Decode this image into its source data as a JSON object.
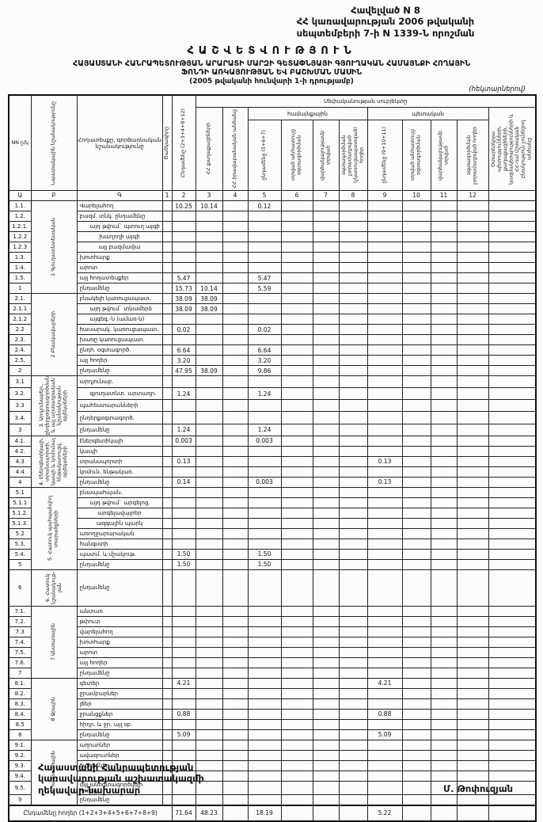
{
  "page": {
    "appendix_line1": "Հավելված N 8",
    "appendix_line2": "ՀՀ կառավարության 2006 թվականի",
    "appendix_line3": "սեպտեմբերի 7-ի  N 1339-Ն որոշման",
    "title": "ՀԱՇՎԵՏՎՈՒԹՅՈՒՆ",
    "subtitle1": "ՀԱՅԱՍՏԱՆԻ ՀԱՆՐԱՊԵՏՈՒԹՅԱՆ ԱՐԱՐԱՏԻ ՄԱՐԶԻ ԳԵՏԱՓՆՅԱՅԻ ԳՅՈՒՂԱԿԱՆ ՀԱՄԱՅՆՔԻ ՀՈՂԱՅԻՆ",
    "subtitle2": "ՖՈՆԴԻ ԱՌԿԱՅՈՒԹՅԱՆ ԵՎ ԲԱՇԽՄԱՆ ՄԱՍԻՆ",
    "subtitle3": "(2005 թվականի հունվարի 1-ի դրությամբ)",
    "units_note": "(հեկտարներով)"
  },
  "table": {
    "headers": {
      "num": "NN ը/կ",
      "section": "Նպատակային նշանակությունը",
      "land_type": "Հողատեսքը, գործառնական նշանակությունը",
      "code": "Ծածկագիրը",
      "col1": "Ընդամենը (2+3+4+8+12)",
      "ownership_banner": "Սեփականության սուբյեկտը",
      "col2": "ՀՀ քաղաքացիների",
      "col3": "ՀՀ իրավաբանական անձանց",
      "communal": "համայնքային",
      "state": "պետական",
      "col4": "ընդամենը (5+6+7)",
      "col5": "տրված անհատույց օգտագործման",
      "col6": "վարձակալությամբ տրված",
      "col7": "օգտագործման չտրամադրված (չկառուցապատված) հողեր",
      "col8": "ընդամենը (9+10+11)",
      "col9": "տրված անհատույց օգտագործման",
      "col10": "վարձակալությամբ տրված",
      "col11": "օգտագործման չտրամադրված հողեր",
      "col12": "Օտարերկրյա պետությունների, քաղաքացիների, կազմակերպությունների և ՀՀ-ում մշտական բնակություն չունեցող անձանց"
    },
    "col_numbers": [
      "Ա",
      "Բ",
      "Գ",
      "1",
      "2",
      "3",
      "4",
      "5",
      "6",
      "7",
      "8",
      "9",
      "10",
      "11",
      "12"
    ],
    "sections": [
      {
        "label": "1 Գյուղատնտեսական",
        "rows": [
          {
            "num": "1.1.",
            "label": "Վարելահող",
            "vals": {
              "1": "10.25",
              "2": "10.14",
              "4": "0.12"
            }
          },
          {
            "num": "1.2.",
            "label": "բազմ. տնկ. ընդամենը",
            "vals": {}
          },
          {
            "num": "1.2.1.",
            "label": "այդ թվում` պտուղ այգի",
            "indent": 1,
            "vals": {}
          },
          {
            "num": "1.2.2",
            "label": "խաղողի այգի",
            "indent": 2,
            "vals": {}
          },
          {
            "num": "1.2.3",
            "label": "այլ բազմամյա",
            "indent": 2,
            "vals": {}
          },
          {
            "num": "1.3.",
            "label": "խոտհարք",
            "vals": {}
          },
          {
            "num": "1.4.",
            "label": "արոտ",
            "vals": {}
          },
          {
            "num": "1.5.",
            "label": "այլ հողատեսքեր",
            "vals": {
              "1": "5.47",
              "4": "5.47"
            }
          },
          {
            "num": "1",
            "label": "ընդամենը",
            "vals": {
              "1": "15.73",
              "2": "10.14",
              "4": "5.59"
            }
          }
        ]
      },
      {
        "label": "2 Բնակավայրերի",
        "rows": [
          {
            "num": "2.1.",
            "label": "բնակելի կառուցապատ.",
            "vals": {
              "1": "38.09",
              "2": "38.09"
            }
          },
          {
            "num": "2.1.1",
            "label": "այդ թվում` տնամերձ",
            "indent": 1,
            "vals": {
              "1": "38.09",
              "2": "38.09"
            }
          },
          {
            "num": "2.1.2",
            "label": "այգեգ.-ն (ամառ-ն)",
            "indent": 1,
            "vals": {}
          },
          {
            "num": "2.2",
            "label": "հասարակ. կառուցապատ.",
            "vals": {
              "1": "0.02",
              "4": "0.02"
            }
          },
          {
            "num": "2.3.",
            "label": "խառը կառուցապատ.",
            "vals": {}
          },
          {
            "num": "2.4.",
            "label": "ընդհ. օգտագործ.",
            "vals": {
              "1": "6.64",
              "4": "6.64"
            }
          },
          {
            "num": "2.5.",
            "label": "այլ հողեր",
            "vals": {
              "1": "3.20",
              "4": "3.20"
            }
          },
          {
            "num": "2",
            "label": "ընդամենը",
            "vals": {
              "1": "47.95",
              "2": "38.09",
              "4": "9.86"
            }
          }
        ]
      },
      {
        "label": "3. Արդյունաբեր., ընդերքօգտագործման և այլ արտադրական նշանակության օբյեկտների",
        "rows": [
          {
            "num": "3.1",
            "label": "արդյունաբ.",
            "vals": {}
          },
          {
            "num": "3.2.",
            "label": "գյուղատնտ. արտադր.",
            "indent": 1,
            "vals": {
              "1": "1.24",
              "4": "1.24"
            }
          },
          {
            "num": "3.3",
            "label": "պահեստարանների",
            "vals": {}
          },
          {
            "num": "3.4.",
            "label": "ընդերքօգտագործ.",
            "vals": {}
          },
          {
            "num": "3",
            "label": "ընդամենը",
            "vals": {
              "1": "1.24",
              "4": "1.24"
            }
          }
        ]
      },
      {
        "label": "4. Էներգետիկայի, տրանսպորտի, կապի և կոմունալ ենթակառուցվ. օբյեկտների",
        "rows": [
          {
            "num": "4.1.",
            "label": "էներգետիկայի",
            "vals": {
              "1": "0.003",
              "4": "0.003"
            }
          },
          {
            "num": "4.2.",
            "label": "կապի",
            "vals": {}
          },
          {
            "num": "4.3",
            "label": "տրանսպորտի",
            "vals": {
              "1": "0.13",
              "8": "0.13"
            }
          },
          {
            "num": "4.4",
            "label": "կոմուն. ենթակառ.",
            "vals": {}
          },
          {
            "num": "4",
            "label": "ընդամենը",
            "vals": {
              "1": "0.14",
              "4": "0.003",
              "8": "0.13"
            }
          }
        ]
      },
      {
        "label": "5. Հատուկ պահպանվող տարածքների",
        "rows": [
          {
            "num": "5.1",
            "label": "բնապահպան.",
            "vals": {}
          },
          {
            "num": "5.1.1",
            "label": "այդ թվում` արգելոց.",
            "indent": 1,
            "vals": {}
          },
          {
            "num": "5.1.2.",
            "label": "արգելավայրեր",
            "indent": 2,
            "vals": {}
          },
          {
            "num": "5.1.3.",
            "label": "ազգային պարկ",
            "indent": 2,
            "vals": {}
          },
          {
            "num": "5.2",
            "label": "առողջարարական",
            "vals": {}
          },
          {
            "num": "5.3.",
            "label": "հանգստի",
            "vals": {}
          },
          {
            "num": "5.4.",
            "label": "պատմ. և մշակութ.",
            "vals": {
              "1": "1.50",
              "4": "1.50"
            }
          },
          {
            "num": "5",
            "label": "ընդամենը",
            "vals": {
              "1": "1.50",
              "4": "1.50"
            }
          }
        ]
      },
      {
        "label": "6. Հատուկ նշանակութ-յան",
        "rows": [
          {
            "num": "6",
            "label": "ընդամենը",
            "tall": 46,
            "vals": {}
          }
        ]
      },
      {
        "label": "7 Անտառային",
        "rows": [
          {
            "num": "7.1.",
            "label": "անտառ",
            "vals": {}
          },
          {
            "num": "7.2.",
            "label": "թփուտ",
            "vals": {}
          },
          {
            "num": "7.3",
            "label": "վարելահող",
            "vals": {}
          },
          {
            "num": "7.4.",
            "label": "խոտհարք",
            "vals": {}
          },
          {
            "num": "7.5.",
            "label": "արոտ",
            "vals": {}
          },
          {
            "num": "7.6.",
            "label": "այլ հողեր",
            "vals": {}
          },
          {
            "num": "7",
            "label": "ընդամենը",
            "vals": {}
          }
        ]
      },
      {
        "label": "8 Ջրային",
        "rows": [
          {
            "num": "8.1.",
            "label": "գետեր",
            "vals": {
              "1": "4.21",
              "8": "4.21"
            }
          },
          {
            "num": "8.2.",
            "label": "ջրամբարներ",
            "vals": {}
          },
          {
            "num": "8.3.",
            "label": "լճեր",
            "vals": {}
          },
          {
            "num": "8.4.",
            "label": "ջրանցքներ",
            "vals": {
              "1": "0.88",
              "8": "0.88"
            }
          },
          {
            "num": "8.5",
            "label": "հիդր. և ջր. այլ օբ.",
            "vals": {}
          },
          {
            "num": "8",
            "label": "ընդամենը",
            "vals": {
              "1": "5.09",
              "8": "5.09"
            }
          }
        ]
      },
      {
        "label": "9 Պահուստային",
        "rows": [
          {
            "num": "9.1.",
            "label": "աղուտներ",
            "vals": {}
          },
          {
            "num": "9.2.",
            "label": "ավազուտներ",
            "vals": {}
          },
          {
            "num": "9.3.",
            "label": "ճահիճներ",
            "vals": {}
          },
          {
            "num": "9.4.",
            "label": "",
            "vals": {}
          },
          {
            "num": "9.5.",
            "label": "այլ անօգտագործվելի հողեր",
            "vals": {}
          },
          {
            "num": "9",
            "label": "ընդամենը",
            "vals": {}
          }
        ]
      }
    ],
    "total_row": {
      "label": "Ընդամենը հողեր (1+2+3+4+5+6+7+8+9)",
      "vals": {
        "1": "71.64",
        "2": "48.23",
        "4": "18.19",
        "8": "5.22"
      }
    }
  },
  "footer": {
    "line1": "Հայաստանի Հանրապետության",
    "line2": "կառավարության աշխատակազմի",
    "line3": "ղեկավար-նախարար",
    "signature": "Մ. Թոփուզյան"
  }
}
